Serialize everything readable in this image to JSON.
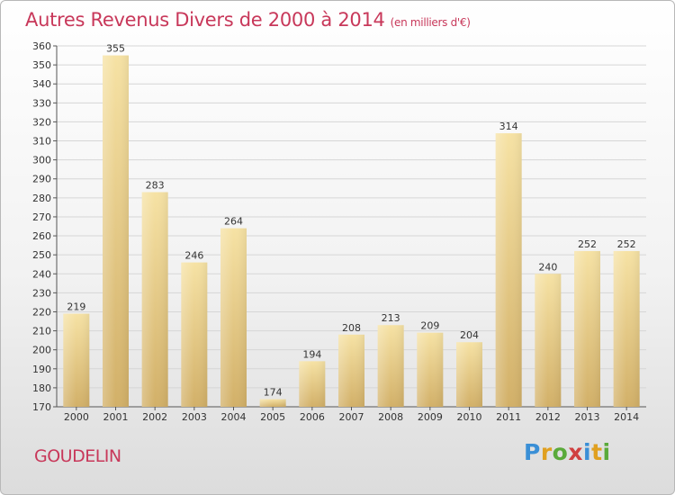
{
  "header": {
    "title": "Autres Revenus Divers de 2000 à 2014",
    "unit": "(en milliers d'€)"
  },
  "footer": {
    "place": "GOUDELIN",
    "logo": "Proxiti"
  },
  "colors": {
    "title": "#c8385a",
    "bar_light": "#f6e2a4",
    "bar_dark": "#d2b068"
  },
  "chart_data": {
    "type": "bar",
    "title": "Autres Revenus Divers de 2000 à 2014",
    "subtitle": "(en milliers d'€)",
    "xlabel": "",
    "ylabel": "",
    "categories": [
      "2000",
      "2001",
      "2002",
      "2003",
      "2004",
      "2005",
      "2006",
      "2007",
      "2008",
      "2009",
      "2010",
      "2011",
      "2012",
      "2013",
      "2014"
    ],
    "values": [
      219,
      355,
      283,
      246,
      264,
      174,
      194,
      208,
      213,
      209,
      204,
      314,
      240,
      252,
      252
    ],
    "ylim": [
      170,
      360
    ],
    "yticks": [
      170,
      180,
      190,
      200,
      210,
      220,
      230,
      240,
      250,
      260,
      270,
      280,
      290,
      300,
      310,
      320,
      330,
      340,
      350,
      360
    ],
    "grid": true,
    "legend": "none"
  }
}
